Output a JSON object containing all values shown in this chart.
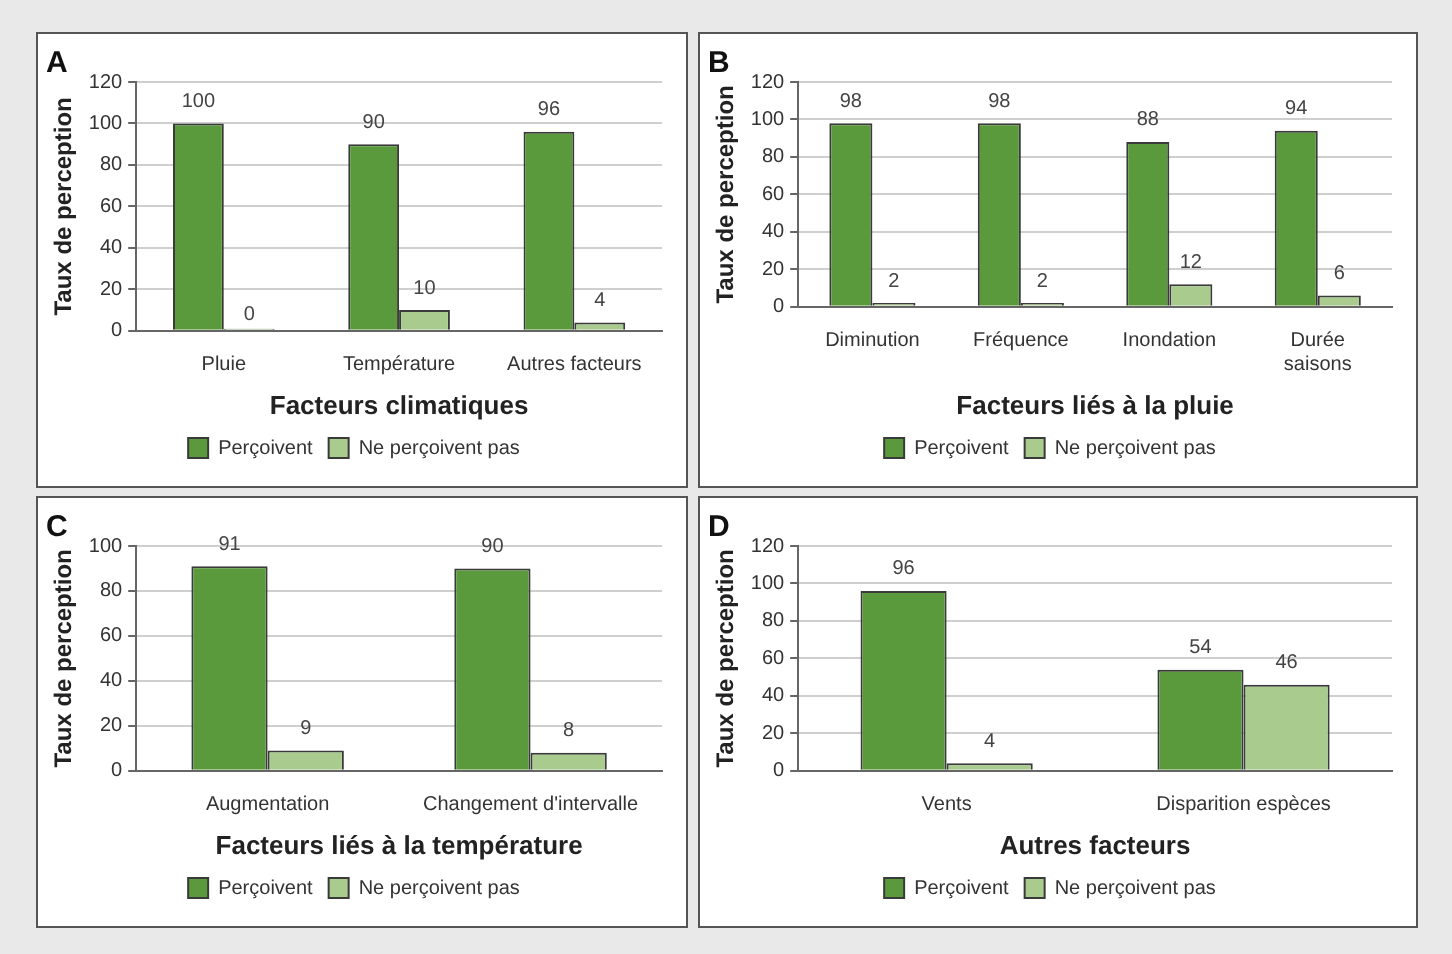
{
  "chart_data": [
    {
      "type": "bar",
      "title": "A",
      "xlabel": "Facteurs climatiques",
      "ylabel": "Taux de perception",
      "categories": [
        "Pluie",
        "Température",
        "Autres facteurs"
      ],
      "series": [
        {
          "name": "Perçoivent",
          "color": "#5b9a3c",
          "values": [
            100,
            90,
            96
          ]
        },
        {
          "name": "Ne perçoivent pas",
          "color": "#a9cc8e",
          "values": [
            0,
            10,
            4
          ]
        }
      ],
      "ylim": [
        0,
        120
      ],
      "yticks": [
        0,
        20,
        40,
        60,
        80,
        100,
        120
      ],
      "grid": "y",
      "legend": "bottom",
      "data_labels": true
    },
    {
      "type": "bar",
      "title": "B",
      "xlabel": "Facteurs liés à la pluie",
      "ylabel": "Taux de perception",
      "categories": [
        "Diminution",
        "Fréquence",
        "Inondation",
        "Durée saisons"
      ],
      "series": [
        {
          "name": "Perçoivent",
          "color": "#5b9a3c",
          "values": [
            98,
            98,
            88,
            94
          ]
        },
        {
          "name": "Ne perçoivent pas",
          "color": "#a9cc8e",
          "values": [
            2,
            2,
            12,
            6
          ]
        }
      ],
      "ylim": [
        0,
        120
      ],
      "yticks": [
        0,
        20,
        40,
        60,
        80,
        100,
        120
      ],
      "grid": "y",
      "legend": "bottom",
      "data_labels": true
    },
    {
      "type": "bar",
      "title": "C",
      "xlabel": "Facteurs liés à la température",
      "ylabel": "Taux de perception",
      "categories": [
        "Augmentation",
        "Changement d'intervalle"
      ],
      "series": [
        {
          "name": "Perçoivent",
          "color": "#5b9a3c",
          "values": [
            91,
            90
          ]
        },
        {
          "name": "Ne perçoivent pas",
          "color": "#a9cc8e",
          "values": [
            9,
            8
          ]
        }
      ],
      "ylim": [
        0,
        100
      ],
      "yticks": [
        0,
        20,
        40,
        60,
        80,
        100
      ],
      "grid": "y",
      "legend": "bottom",
      "data_labels": true
    },
    {
      "type": "bar",
      "title": "D",
      "xlabel": "Autres facteurs",
      "ylabel": "Taux de perception",
      "categories": [
        "Vents",
        "Disparition espèces"
      ],
      "series": [
        {
          "name": "Perçoivent",
          "color": "#5b9a3c",
          "values": [
            96,
            54
          ]
        },
        {
          "name": "Ne perçoivent pas",
          "color": "#a9cc8e",
          "values": [
            4,
            46
          ]
        }
      ],
      "ylim": [
        0,
        120
      ],
      "yticks": [
        0,
        20,
        40,
        60,
        80,
        100,
        120
      ],
      "grid": "y",
      "legend": "bottom",
      "data_labels": true
    }
  ]
}
